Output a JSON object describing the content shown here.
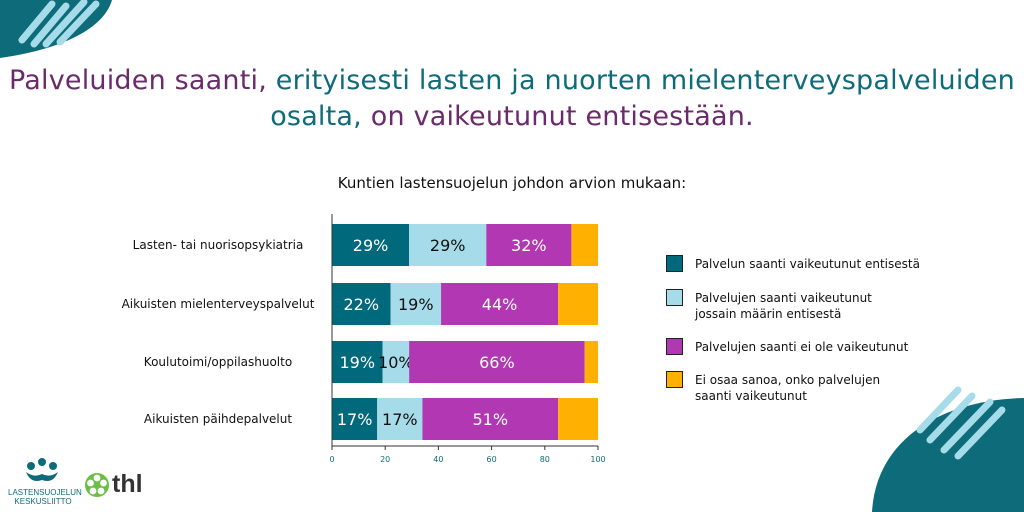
{
  "title": {
    "line1_part1": "Palveluiden saanti,",
    "line1_part2": " erityisesti lasten ja nuorten mielenterveyspalveluiden",
    "line2_part1": "osalta,",
    "line2_part2": " on vaikeutunut entisestään."
  },
  "colors": {
    "purple_text": "#6b2a6b",
    "teal_text": "#0e6b7a",
    "series": [
      "#006a7c",
      "#a6dce9",
      "#b237b2",
      "#ffb000"
    ]
  },
  "chart_data": {
    "type": "bar",
    "orientation": "horizontal",
    "stacked": true,
    "title": "Kuntien lastensuojelun johdon arvion mukaan:",
    "categories": [
      "Lasten- tai nuorisopsykiatria",
      "Aikuisten mielenterveyspalvelut",
      "Koulutoimi/oppilashuolto",
      "Aikuisten päihdepalvelut"
    ],
    "series": [
      {
        "name": "Palvelun saanti vaikeutunut entisestä",
        "values": [
          29,
          22,
          19,
          17
        ],
        "labels": [
          "29%",
          "22%",
          "19%",
          "17%"
        ]
      },
      {
        "name": "Palvelujen saanti vaikeutunut jossain määrin entisestä",
        "values": [
          29,
          19,
          10,
          17
        ],
        "labels": [
          "29%",
          "19%",
          "10%",
          "17%"
        ]
      },
      {
        "name": "Palvelujen saanti ei ole vaikeutunut",
        "values": [
          32,
          44,
          66,
          51
        ],
        "labels": [
          "32%",
          "44%",
          "66%",
          "51%"
        ]
      },
      {
        "name": "Ei osaa sanoa, onko palvelujen saanti vaikeutunut",
        "values": [
          10,
          15,
          5,
          15
        ],
        "labels": [
          "",
          "",
          "",
          ""
        ]
      }
    ],
    "xlim": [
      0,
      100
    ],
    "xticks": [
      "0",
      "20",
      "40",
      "60",
      "80",
      "100"
    ],
    "legend_position": "right",
    "grid": false
  },
  "legend": {
    "items": [
      {
        "lines": [
          "Palvelun saanti vaikeutunut entisestä"
        ]
      },
      {
        "lines": [
          "Palvelujen saanti vaikeutunut",
          "jossain määrin entisestä"
        ]
      },
      {
        "lines": [
          "Palvelujen saanti ei ole vaikeutunut"
        ]
      },
      {
        "lines": [
          "Ei osaa sanoa, onko palvelujen",
          "saanti vaikeutunut"
        ]
      }
    ]
  },
  "logos": {
    "left_line1": "LASTENSUOJELUN",
    "left_line2": "KESKUSLIITTO",
    "right": "thl"
  }
}
